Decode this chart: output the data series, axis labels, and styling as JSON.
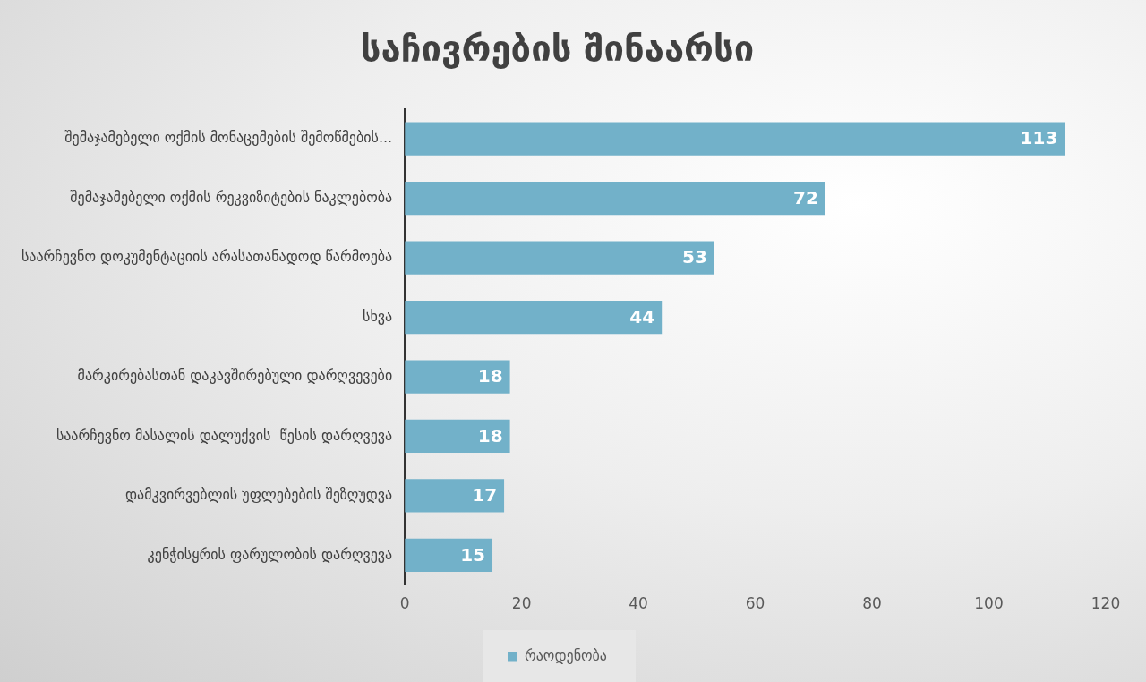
{
  "chart_data": {
    "type": "bar",
    "orientation": "horizontal",
    "title": "საჩივრების შინაარსი",
    "categories": [
      "შემაჯამებელი ოქმის მონაცემების შემოწმების...",
      "შემაჯამებელი ოქმის რეკვიზიტების ნაკლებობა",
      "საარჩევნო დოკუმენტაციის არასათანადოდ წარმოება",
      "სხვა",
      "მარკირებასთან დაკავშირებული დარღვევები",
      "საარჩევნო მასალის დალუქვის  წესის დარღვევა",
      "დამკვირვებლის უფლებების შეზღუდვა",
      "კენჭისყრის ფარულობის დარღვევა"
    ],
    "series": [
      {
        "name": "რაოდენობა",
        "color": "#72b1c9",
        "values": [
          113,
          72,
          53,
          44,
          18,
          18,
          17,
          15
        ]
      }
    ],
    "xlim": [
      0,
      120
    ],
    "xticks": [
      0,
      20,
      40,
      60,
      80,
      100,
      120
    ],
    "grid": false,
    "legend": "bottom",
    "data_labels": true
  }
}
